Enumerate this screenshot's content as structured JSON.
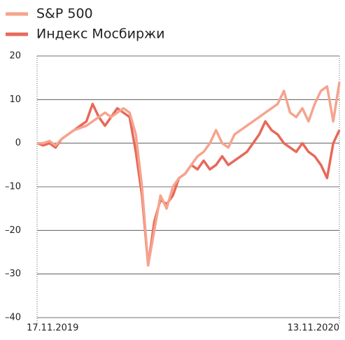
{
  "chart_data": {
    "type": "line",
    "categories": [
      "17.11.2019",
      null,
      null,
      null,
      null,
      null,
      null,
      null,
      null,
      null,
      null,
      null,
      null,
      null,
      null,
      null,
      null,
      null,
      null,
      null,
      null,
      null,
      null,
      null,
      null,
      null,
      null,
      null,
      null,
      null,
      null,
      null,
      null,
      null,
      null,
      null,
      null,
      null,
      null,
      null,
      null,
      null,
      null,
      null,
      null,
      null,
      null,
      null,
      null,
      "13.11.2020"
    ],
    "series": [
      {
        "name": "S&P 500",
        "color": "#f5a48e",
        "values": [
          0,
          0,
          0.5,
          -0.5,
          1,
          2,
          3,
          3.5,
          4,
          5,
          6,
          7,
          6,
          7,
          8,
          7,
          2,
          -10,
          -28,
          -20,
          -12,
          -15,
          -10,
          -8,
          -7,
          -5,
          -3,
          -2,
          0,
          3,
          0,
          -1,
          2,
          3,
          4,
          5,
          6,
          7,
          8,
          9,
          12,
          7,
          6,
          8,
          5,
          9,
          12,
          13,
          5,
          14
        ]
      },
      {
        "name": "Индекс Мосбиржи",
        "color": "#e8685a",
        "values": [
          0,
          -0.5,
          0,
          -1,
          1,
          2,
          3,
          4,
          5,
          9,
          6,
          4,
          6,
          8,
          7,
          6,
          -2,
          -12,
          -28,
          -18,
          -13,
          -14,
          -12,
          -8,
          -7,
          -5,
          -6,
          -4,
          -6,
          -5,
          -3,
          -5,
          -4,
          -3,
          -2,
          0,
          2,
          5,
          3,
          2,
          0,
          -1,
          -2,
          0,
          -2,
          -3,
          -5,
          -8,
          0,
          3
        ]
      }
    ],
    "ylim": [
      -40,
      20
    ],
    "yticks": [
      {
        "value": -40,
        "label": "–40"
      },
      {
        "value": -30,
        "label": "–30"
      },
      {
        "value": -20,
        "label": "–20"
      },
      {
        "value": -10,
        "label": "–10"
      },
      0,
      10,
      20
    ],
    "grid": true
  }
}
